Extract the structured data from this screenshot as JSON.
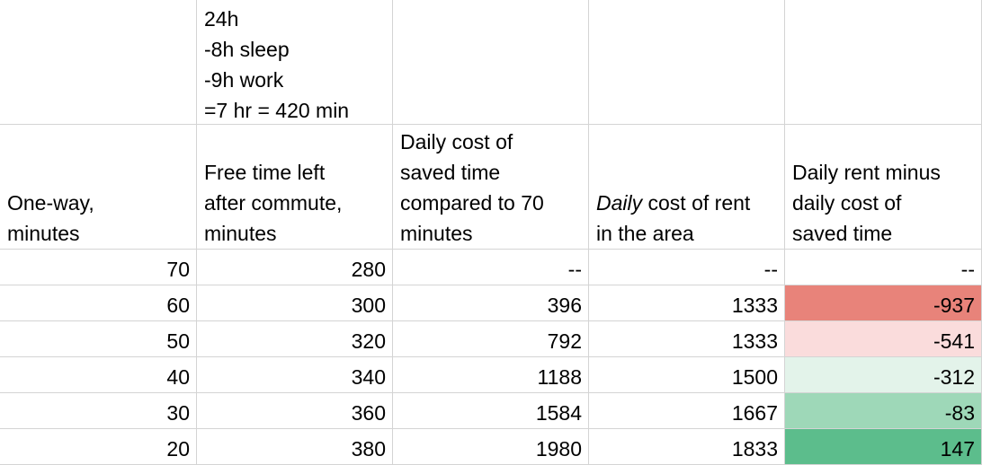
{
  "header_note": {
    "lines": [
      "24h",
      "-8h sleep",
      "-9h work",
      "=7 hr = 420 min"
    ]
  },
  "columns": {
    "a": [
      "One-way,",
      "minutes"
    ],
    "b": [
      "Free time left",
      "after commute,",
      "minutes"
    ],
    "c": [
      "Daily cost of",
      "saved time",
      "compared to 70",
      "minutes"
    ],
    "d": {
      "italic": "Daily",
      "rest": " cost of rent",
      "line2": "in the area"
    },
    "e": [
      "Daily rent minus",
      "daily cost of",
      "saved time"
    ]
  },
  "rows": [
    {
      "a": "70",
      "b": "280",
      "c": "--",
      "d": "--",
      "e": "--",
      "fill": "#ffffff"
    },
    {
      "a": "60",
      "b": "300",
      "c": "396",
      "d": "1333",
      "e": "-937",
      "fill": "#e8837a"
    },
    {
      "a": "50",
      "b": "320",
      "c": "792",
      "d": "1333",
      "e": "-541",
      "fill": "#fadcdc"
    },
    {
      "a": "40",
      "b": "340",
      "c": "1188",
      "d": "1500",
      "e": "-312",
      "fill": "#e3f3ea"
    },
    {
      "a": "30",
      "b": "360",
      "c": "1584",
      "d": "1667",
      "e": "-83",
      "fill": "#9ed8b8"
    },
    {
      "a": "20",
      "b": "380",
      "c": "1980",
      "d": "1833",
      "e": "147",
      "fill": "#5cbd8c"
    }
  ]
}
